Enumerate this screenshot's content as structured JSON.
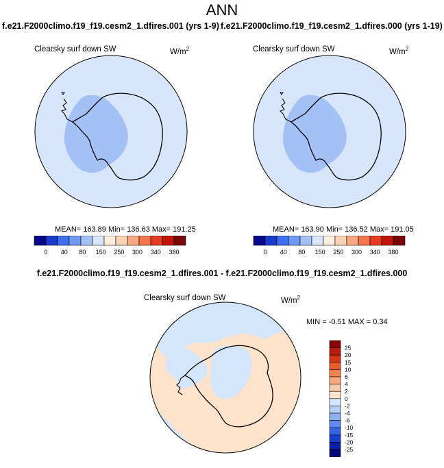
{
  "title": "ANN",
  "panels": [
    {
      "case": "f.e21.F2000climo.f19_f19.cesm2_1.dfires.001 (yrs 1-9)",
      "variable": "Clearsky surf down SW",
      "units": "W/m",
      "units_exp": "2",
      "stats": "MEAN= 163.89  Min= 136.63  Max= 191.25"
    },
    {
      "case": "f.e21.F2000climo.f19_f19.cesm2_1.dfires.000 (yrs 1-19)",
      "variable": "Clearsky surf down SW",
      "units": "W/m",
      "units_exp": "2",
      "stats": "MEAN= 163.90  Min= 136.52  Max= 191.05"
    }
  ],
  "diff": {
    "title": "f.e21.F2000climo.f19_f19.cesm2_1.dfires.001 - f.e21.F2000climo.f19_f19.cesm2_1.dfires.000",
    "variable": "Clearsky surf down SW",
    "units": "W/m",
    "units_exp": "2",
    "stats": "MIN =  -0.51 MAX =   0.34"
  },
  "chart_data": [
    {
      "type": "heatmap",
      "projection": "south-polar-stereographic",
      "levels": [
        "0",
        "40",
        "80",
        "150",
        "250",
        "300",
        "340",
        "380"
      ],
      "palette": [
        "#08088a",
        "#1a3ccc",
        "#3d6ff0",
        "#6d99f2",
        "#a3c1f5",
        "#d7e6fb",
        "#ffeedd",
        "#fcd2b4",
        "#f9a982",
        "#f4764f",
        "#e43b21",
        "#c21507",
        "#7a0808"
      ]
    },
    {
      "type": "heatmap",
      "projection": "south-polar-stereographic",
      "levels": [
        "0",
        "40",
        "80",
        "150",
        "250",
        "300",
        "340",
        "380"
      ],
      "palette": [
        "#08088a",
        "#1a3ccc",
        "#3d6ff0",
        "#6d99f2",
        "#a3c1f5",
        "#d7e6fb",
        "#ffeedd",
        "#fcd2b4",
        "#f9a982",
        "#f4764f",
        "#e43b21",
        "#c21507",
        "#7a0808"
      ]
    },
    {
      "type": "heatmap",
      "projection": "south-polar-stereographic",
      "levels": [
        "25",
        "20",
        "15",
        "10",
        "6",
        "4",
        "2",
        "0",
        "-2",
        "-4",
        "-6",
        "-10",
        "-15",
        "-20",
        "-25"
      ],
      "palette": [
        "#8b0000",
        "#bb1a0a",
        "#d93415",
        "#ee5a2c",
        "#f58150",
        "#f9a77d",
        "#fbc9a8",
        "#fde3cc",
        "#d3e6fb",
        "#b5cff7",
        "#8eb0f3",
        "#5f8cee",
        "#3366e8",
        "#1540c9",
        "#0a1fa6",
        "#05057a"
      ]
    }
  ]
}
